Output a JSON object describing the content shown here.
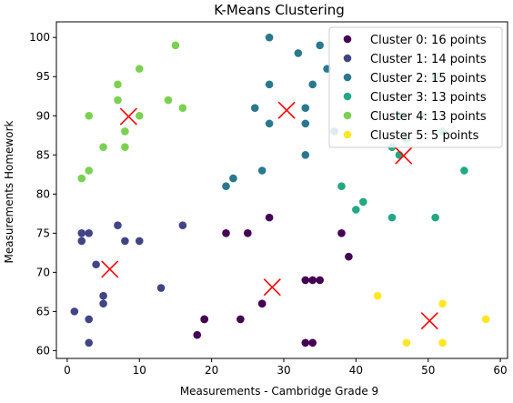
{
  "chart_data": {
    "type": "scatter",
    "title": "K-Means Clustering",
    "xlabel": "Measurements - Cambridge Grade 9",
    "ylabel": "Measurements Homework",
    "xlim": [
      -1.5,
      61
    ],
    "ylim": [
      59,
      102
    ],
    "xticks": [
      0,
      10,
      20,
      30,
      40,
      50,
      60
    ],
    "yticks": [
      60,
      65,
      70,
      75,
      80,
      85,
      90,
      95,
      100
    ],
    "grid": false,
    "legend_position": "top-right",
    "series": [
      {
        "name": "Cluster 0: 16 points",
        "color": "#440154",
        "points": [
          [
            18,
            62
          ],
          [
            19,
            64
          ],
          [
            24,
            64
          ],
          [
            27,
            66
          ],
          [
            27,
            66
          ],
          [
            28,
            77
          ],
          [
            22,
            75
          ],
          [
            25,
            75
          ],
          [
            33,
            69
          ],
          [
            34,
            69
          ],
          [
            35,
            69
          ],
          [
            33,
            61
          ],
          [
            34,
            61
          ],
          [
            38,
            75
          ],
          [
            39,
            72
          ],
          [
            19,
            64
          ]
        ]
      },
      {
        "name": "Cluster 1: 14 points",
        "color": "#414487",
        "points": [
          [
            1,
            65
          ],
          [
            3,
            64
          ],
          [
            3,
            61
          ],
          [
            2,
            75
          ],
          [
            3,
            75
          ],
          [
            2,
            74
          ],
          [
            4,
            71
          ],
          [
            5,
            67
          ],
          [
            5,
            66
          ],
          [
            7,
            76
          ],
          [
            8,
            74
          ],
          [
            10,
            74
          ],
          [
            13,
            68
          ],
          [
            16,
            76
          ]
        ]
      },
      {
        "name": "Cluster 2: 15 points",
        "color": "#2a788e",
        "points": [
          [
            28,
            100
          ],
          [
            32,
            98
          ],
          [
            35,
            99
          ],
          [
            36,
            96
          ],
          [
            34,
            94
          ],
          [
            28,
            94
          ],
          [
            26,
            91
          ],
          [
            28,
            89
          ],
          [
            33,
            91
          ],
          [
            33,
            89
          ],
          [
            37,
            88
          ],
          [
            27,
            83
          ],
          [
            33,
            85
          ],
          [
            22,
            81
          ],
          [
            23,
            82
          ]
        ]
      },
      {
        "name": "Cluster 3: 13 points",
        "color": "#22a884",
        "points": [
          [
            46,
            90
          ],
          [
            49,
            90
          ],
          [
            51,
            95
          ],
          [
            45,
            86
          ],
          [
            46,
            85
          ],
          [
            55,
            83
          ],
          [
            38,
            81
          ],
          [
            41,
            79
          ],
          [
            40,
            78
          ],
          [
            45,
            77
          ],
          [
            51,
            77
          ],
          [
            52,
            88
          ],
          [
            47,
            87
          ]
        ]
      },
      {
        "name": "Cluster 4: 13 points",
        "color": "#7ad151",
        "points": [
          [
            15,
            99
          ],
          [
            10,
            96
          ],
          [
            7,
            94
          ],
          [
            7,
            92
          ],
          [
            14,
            92
          ],
          [
            16,
            91
          ],
          [
            3,
            90
          ],
          [
            8,
            88
          ],
          [
            10,
            90
          ],
          [
            5,
            86
          ],
          [
            8,
            86
          ],
          [
            3,
            83
          ],
          [
            2,
            82
          ]
        ]
      },
      {
        "name": "Cluster 5: 5 points",
        "color": "#fde725",
        "points": [
          [
            43,
            67
          ],
          [
            52,
            66
          ],
          [
            58,
            64
          ],
          [
            47,
            61
          ],
          [
            52,
            61
          ]
        ]
      }
    ],
    "centroids": {
      "color": "#ff0000",
      "points": [
        [
          28.4,
          68.1
        ],
        [
          5.9,
          70.4
        ],
        [
          30.4,
          90.7
        ],
        [
          46.6,
          84.9
        ],
        [
          8.5,
          89.9
        ],
        [
          50.2,
          63.8
        ]
      ]
    }
  }
}
